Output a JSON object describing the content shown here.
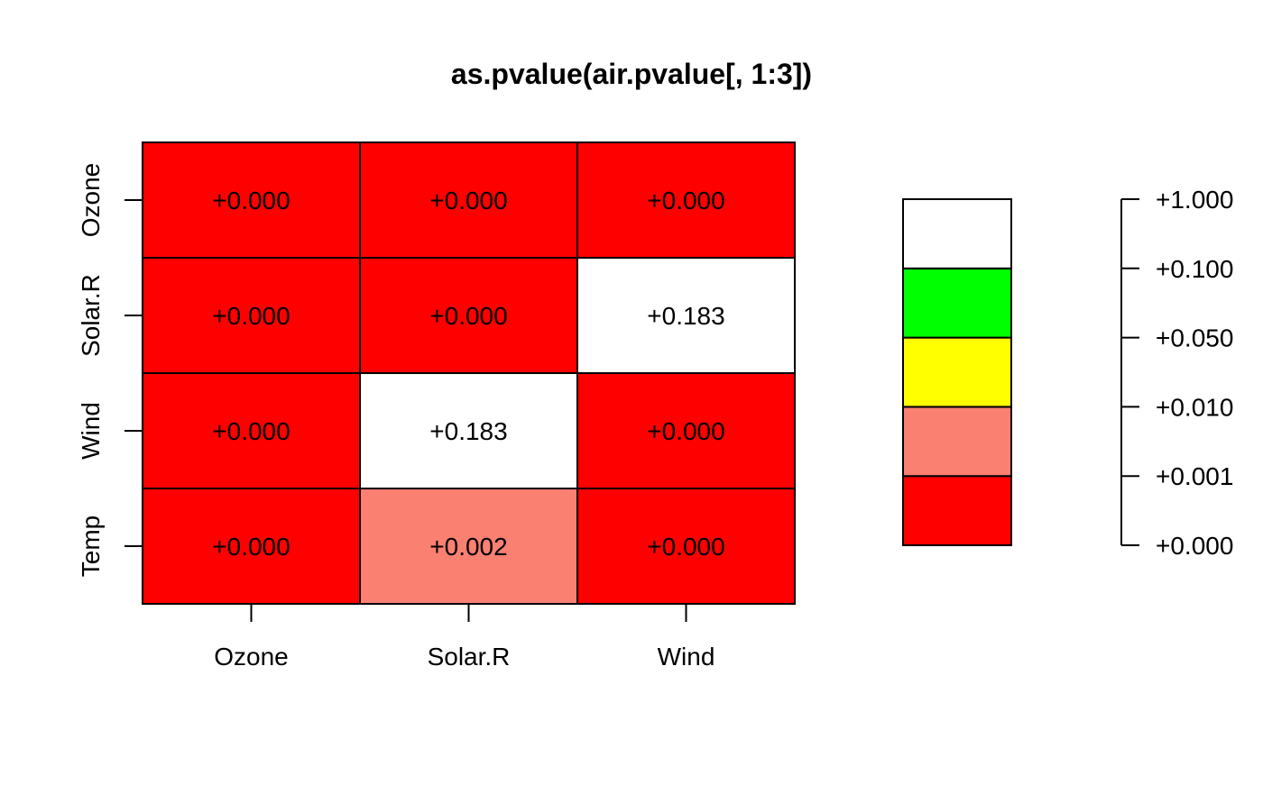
{
  "chart_data": {
    "type": "heatmap",
    "title": "as.pvalue(air.pvalue[, 1:3])",
    "xlabel": "",
    "ylabel": "",
    "columns": [
      "Ozone",
      "Solar.R",
      "Wind"
    ],
    "rows": [
      "Ozone",
      "Solar.R",
      "Wind",
      "Temp"
    ],
    "cells": [
      [
        {
          "value": 0.0,
          "label": "+0.000",
          "color": "#ff0000"
        },
        {
          "value": 0.0,
          "label": "+0.000",
          "color": "#ff0000"
        },
        {
          "value": 0.0,
          "label": "+0.000",
          "color": "#ff0000"
        }
      ],
      [
        {
          "value": 0.0,
          "label": "+0.000",
          "color": "#ff0000"
        },
        {
          "value": 0.0,
          "label": "+0.000",
          "color": "#ff0000"
        },
        {
          "value": 0.183,
          "label": "+0.183",
          "color": "#ffffff"
        }
      ],
      [
        {
          "value": 0.0,
          "label": "+0.000",
          "color": "#ff0000"
        },
        {
          "value": 0.183,
          "label": "+0.183",
          "color": "#ffffff"
        },
        {
          "value": 0.0,
          "label": "+0.000",
          "color": "#ff0000"
        }
      ],
      [
        {
          "value": 0.0,
          "label": "+0.000",
          "color": "#ff0000"
        },
        {
          "value": 0.002,
          "label": "+0.002",
          "color": "#fa8072"
        },
        {
          "value": 0.0,
          "label": "+0.000",
          "color": "#ff0000"
        }
      ]
    ],
    "legend": {
      "placement": "right",
      "breaks": [
        "+0.000",
        "+0.001",
        "+0.010",
        "+0.050",
        "+0.100",
        "+1.000"
      ],
      "colors": [
        "#ff0000",
        "#fa8072",
        "#ffff00",
        "#00ff00",
        "#ffffff"
      ]
    },
    "grid": false
  }
}
